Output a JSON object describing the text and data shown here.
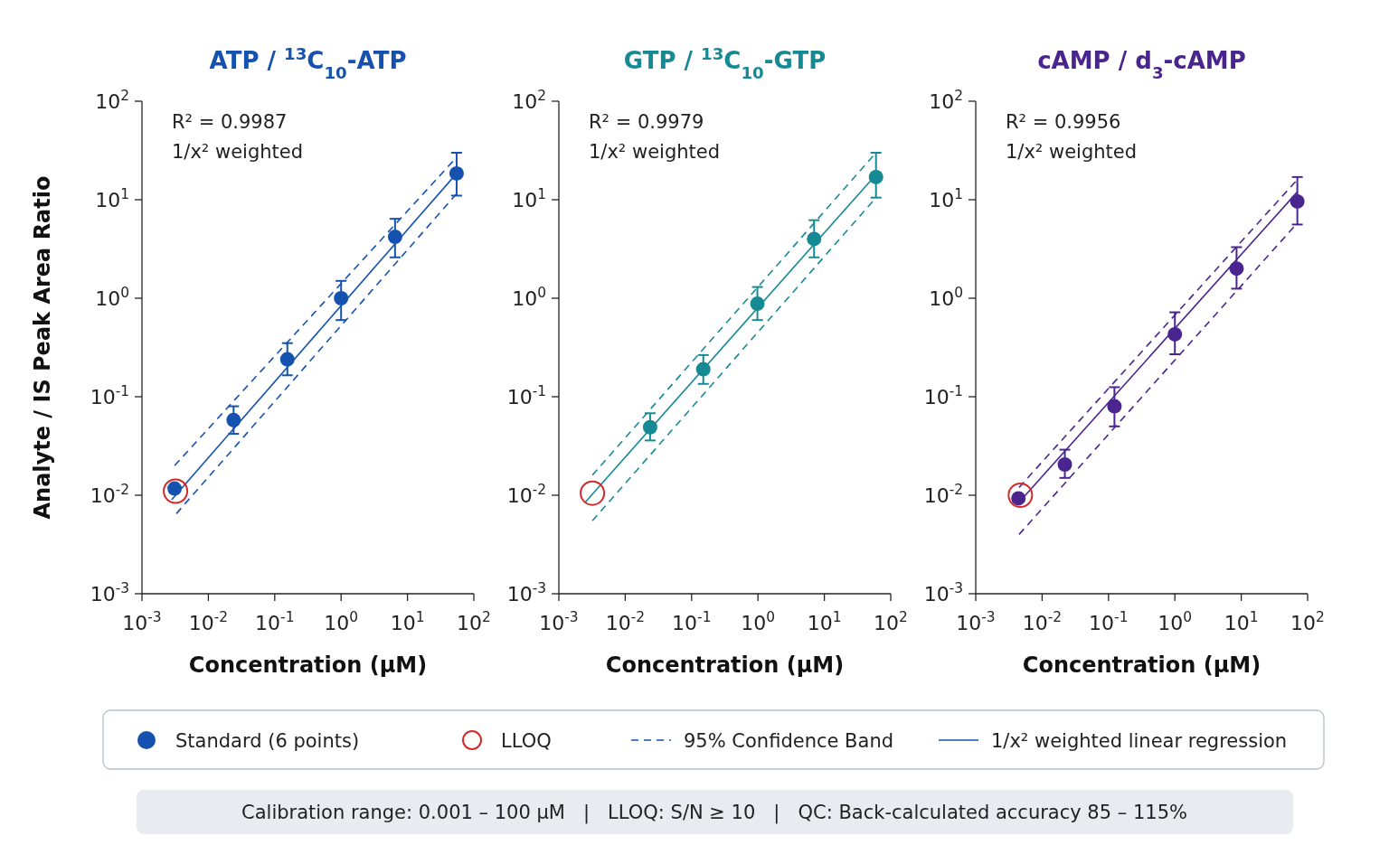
{
  "chart_data": [
    {
      "type": "scatter",
      "title": "ATP / $^{13}$C$_{10}$-ATP",
      "xlabel": "Concentration (μM)",
      "ylabel": "Analyte / IS Peak Area Ratio",
      "log": "xy",
      "xlim": [
        0.001,
        100
      ],
      "ylim": [
        0.001,
        100
      ],
      "xticks": [
        {
          "value": 0.001,
          "label": "10$^{-3}$"
        },
        {
          "value": 0.01,
          "label": "10$^{-2}$"
        },
        {
          "value": 0.1,
          "label": "10$^{-1}$"
        },
        {
          "value": 1,
          "label": "10$^{0}$"
        },
        {
          "value": 10,
          "label": "10$^{1}$"
        },
        {
          "value": 100,
          "label": "10$^{2}$"
        }
      ],
      "yticks": [
        {
          "value": 0.001,
          "label": "10$^{-3}$"
        },
        {
          "value": 0.01,
          "label": "10$^{-2}$"
        },
        {
          "value": 0.1,
          "label": "10$^{-1}$"
        },
        {
          "value": 1,
          "label": "10$^{0}$"
        },
        {
          "value": 10,
          "label": "10$^{1}$"
        },
        {
          "value": 100,
          "label": "10$^{2}$"
        }
      ],
      "legend": "bottom",
      "annotations": [
        "R² = 0.9987",
        "1/x² weighted",
        "Calibration range: 0.001 – 100 µM   |   LLOQ: S/N ≥ 10   |   QC: Back-calculated accuracy 85 – 115%"
      ],
      "series": [
        {
          "name": "Standard (6 points)",
          "marker": "circle",
          "color": "#1552b0",
          "x": [
            0.0031,
            0.024,
            0.155,
            1.0,
            6.5,
            55
          ],
          "values": [
            0.0117,
            0.058,
            0.24,
            1.0,
            4.2,
            18.5
          ],
          "errors": [
            null,
            [
              0.042,
              0.08
            ],
            [
              0.165,
              0.35
            ],
            [
              0.6,
              1.5
            ],
            [
              2.6,
              6.4
            ],
            [
              11,
              30
            ]
          ]
        },
        {
          "name": "LLOQ",
          "marker": "circle",
          "color": "#d22a2a",
          "x": [
            0.0032
          ],
          "values": [
            0.011
          ]
        },
        {
          "name": "95% Confidence Band",
          "type": "line",
          "line_style": "dashed",
          "color": "#1552b0",
          "x": [
            0.0031,
            55
          ],
          "values": [
            0.02,
            27
          ]
        },
        {
          "type": "line",
          "line_style": "dashed",
          "color": "#1552b0",
          "x": [
            0.0033,
            55
          ],
          "values": [
            0.0065,
            11.5
          ]
        },
        {
          "name": "1/x² weighted linear regression",
          "type": "line",
          "line_style": "solid",
          "color": "#1552b0",
          "x": [
            0.0028,
            55
          ],
          "values": [
            0.009,
            18.5
          ]
        }
      ]
    },
    {
      "type": "scatter",
      "title": "GTP / $^{13}$C$_{10}$-GTP",
      "xlabel": "Concentration (μM)",
      "log": "xy",
      "xlim": [
        0.001,
        100
      ],
      "ylim": [
        0.001,
        100
      ],
      "xticks": [
        {
          "value": 0.001,
          "label": "10$^{-3}$"
        },
        {
          "value": 0.01,
          "label": "10$^{-2}$"
        },
        {
          "value": 0.1,
          "label": "10$^{-1}$"
        },
        {
          "value": 1,
          "label": "10$^{0}$"
        },
        {
          "value": 10,
          "label": "10$^{1}$"
        },
        {
          "value": 100,
          "label": "10$^{2}$"
        }
      ],
      "yticks": [
        {
          "value": 0.001,
          "label": "10$^{-3}$"
        },
        {
          "value": 0.01,
          "label": "10$^{-2}$"
        },
        {
          "value": 0.1,
          "label": "10$^{-1}$"
        },
        {
          "value": 1,
          "label": "10$^{0}$"
        },
        {
          "value": 10,
          "label": "10$^{1}$"
        },
        {
          "value": 100,
          "label": "10$^{2}$"
        }
      ],
      "annotations": [
        "R² = 0.9979",
        "1/x² weighted"
      ],
      "series": [
        {
          "marker": "circle",
          "color": "#168a94",
          "x": [
            0.0237,
            0.15,
            0.98,
            7.0,
            60
          ],
          "values": [
            0.049,
            0.19,
            0.88,
            4.0,
            17
          ],
          "errors": [
            [
              0.036,
              0.068
            ],
            [
              0.135,
              0.265
            ],
            [
              0.6,
              1.3
            ],
            [
              2.6,
              6.2
            ],
            [
              10.5,
              30
            ]
          ]
        },
        {
          "marker": "circle",
          "color": "#d22a2a",
          "x": [
            0.0032
          ],
          "values": [
            0.0105
          ]
        },
        {
          "type": "line",
          "line_style": "dashed",
          "color": "#168a94",
          "x": [
            0.0032,
            60
          ],
          "values": [
            0.016,
            30
          ]
        },
        {
          "type": "line",
          "line_style": "dashed",
          "color": "#168a94",
          "x": [
            0.0032,
            60
          ],
          "values": [
            0.0055,
            10.5
          ]
        },
        {
          "type": "line",
          "line_style": "solid",
          "color": "#168a94",
          "x": [
            0.0025,
            60
          ],
          "values": [
            0.0085,
            18
          ]
        }
      ]
    },
    {
      "type": "scatter",
      "title": "cAMP / d$_{3}$-cAMP",
      "xlabel": "Concentration (μM)",
      "log": "xy",
      "xlim": [
        0.001,
        100
      ],
      "ylim": [
        0.001,
        100
      ],
      "xticks": [
        {
          "value": 0.001,
          "label": "10$^{-3}$"
        },
        {
          "value": 0.01,
          "label": "10$^{-2}$"
        },
        {
          "value": 0.1,
          "label": "10$^{-1}$"
        },
        {
          "value": 1,
          "label": "10$^{0}$"
        },
        {
          "value": 10,
          "label": "10$^{1}$"
        },
        {
          "value": 100,
          "label": "10$^{2}$"
        }
      ],
      "yticks": [
        {
          "value": 0.001,
          "label": "10$^{-3}$"
        },
        {
          "value": 0.01,
          "label": "10$^{-2}$"
        },
        {
          "value": 0.1,
          "label": "10$^{-1}$"
        },
        {
          "value": 1,
          "label": "10$^{0}$"
        },
        {
          "value": 10,
          "label": "10$^{1}$"
        },
        {
          "value": 100,
          "label": "10$^{2}$"
        }
      ],
      "annotations": [
        "R² = 0.9956",
        "1/x² weighted"
      ],
      "series": [
        {
          "marker": "circle",
          "color": "#4a2590",
          "x": [
            0.0044,
            0.022,
            0.123,
            1.0,
            8.5,
            70
          ],
          "values": [
            0.0093,
            0.0205,
            0.08,
            0.43,
            2.0,
            9.6
          ],
          "errors": [
            null,
            [
              0.015,
              0.029
            ],
            [
              0.05,
              0.125
            ],
            [
              0.27,
              0.72
            ],
            [
              1.25,
              3.3
            ],
            [
              5.6,
              17
            ]
          ]
        },
        {
          "marker": "circle",
          "color": "#d22a2a",
          "x": [
            0.0047
          ],
          "values": [
            0.01
          ]
        },
        {
          "type": "line",
          "line_style": "dashed",
          "color": "#4a2590",
          "x": [
            0.0045,
            70
          ],
          "values": [
            0.012,
            16
          ]
        },
        {
          "type": "line",
          "line_style": "dashed",
          "color": "#4a2590",
          "x": [
            0.0045,
            70
          ],
          "values": [
            0.004,
            5.8
          ]
        },
        {
          "type": "line",
          "line_style": "solid",
          "color": "#4a2590",
          "x": [
            0.0045,
            70
          ],
          "values": [
            0.0085,
            12
          ]
        }
      ]
    }
  ]
}
